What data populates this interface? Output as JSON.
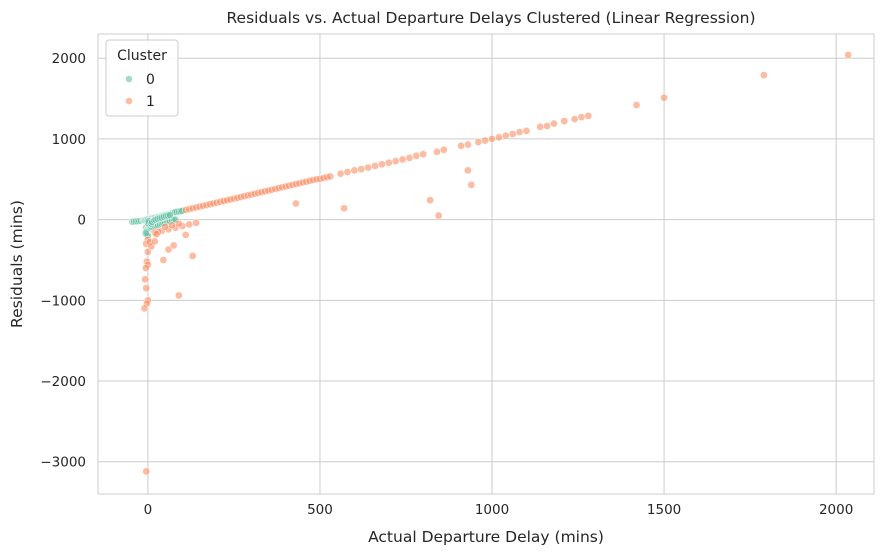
{
  "chart_data": {
    "type": "scatter",
    "title": "Residuals vs. Actual Departure Delays Clustered (Linear Regression)",
    "xlabel": "Actual Departure Delay (mins)",
    "ylabel": "Residuals (mins)",
    "xlim": [
      -145,
      2110
    ],
    "ylim": [
      -3400,
      2300
    ],
    "xticks": [
      0,
      500,
      1000,
      1500,
      2000
    ],
    "yticks": [
      -3000,
      -2000,
      -1000,
      0,
      1000,
      2000
    ],
    "xtick_labels": [
      "0",
      "500",
      "1000",
      "1500",
      "2000"
    ],
    "ytick_labels": [
      "−3000",
      "−2000",
      "−1000",
      "0",
      "1000",
      "2000"
    ],
    "grid": true,
    "legend": {
      "title": "Cluster",
      "position": "top-left",
      "entries": [
        "0",
        "1"
      ]
    },
    "series": [
      {
        "name": "0",
        "color": "#66c2a5",
        "points": [
          [
            -45,
            -28
          ],
          [
            -40,
            -25
          ],
          [
            -35,
            -22
          ],
          [
            -30,
            -20
          ],
          [
            -25,
            -18
          ],
          [
            -20,
            -14
          ],
          [
            -15,
            -10
          ],
          [
            -12,
            -8
          ],
          [
            -10,
            -5
          ],
          [
            -8,
            -3
          ],
          [
            -5,
            0
          ],
          [
            -3,
            2
          ],
          [
            0,
            5
          ],
          [
            2,
            8
          ],
          [
            5,
            10
          ],
          [
            8,
            12
          ],
          [
            10,
            15
          ],
          [
            12,
            18
          ],
          [
            15,
            20
          ],
          [
            18,
            24
          ],
          [
            20,
            26
          ],
          [
            22,
            28
          ],
          [
            25,
            30
          ],
          [
            28,
            33
          ],
          [
            30,
            36
          ],
          [
            32,
            38
          ],
          [
            35,
            40
          ],
          [
            38,
            44
          ],
          [
            40,
            46
          ],
          [
            42,
            48
          ],
          [
            45,
            52
          ],
          [
            48,
            55
          ],
          [
            50,
            58
          ],
          [
            52,
            60
          ],
          [
            55,
            62
          ],
          [
            58,
            66
          ],
          [
            60,
            68
          ],
          [
            62,
            70
          ],
          [
            65,
            74
          ],
          [
            68,
            78
          ],
          [
            70,
            80
          ],
          [
            72,
            82
          ],
          [
            75,
            86
          ],
          [
            78,
            90
          ],
          [
            80,
            94
          ],
          [
            85,
            98
          ],
          [
            90,
            100
          ],
          [
            95,
            104
          ],
          [
            100,
            108
          ],
          [
            -5,
            -100
          ],
          [
            -3,
            -130
          ],
          [
            0,
            -115
          ],
          [
            3,
            -120
          ],
          [
            5,
            -95
          ],
          [
            8,
            -105
          ],
          [
            10,
            -90
          ],
          [
            15,
            -85
          ],
          [
            20,
            -80
          ],
          [
            25,
            -75
          ],
          [
            30,
            -70
          ],
          [
            35,
            -60
          ],
          [
            40,
            -50
          ],
          [
            45,
            -45
          ],
          [
            50,
            -40
          ],
          [
            55,
            -30
          ],
          [
            60,
            -25
          ],
          [
            65,
            -20
          ],
          [
            70,
            -10
          ],
          [
            75,
            -5
          ],
          [
            80,
            0
          ],
          [
            -4,
            -150
          ],
          [
            -2,
            -180
          ],
          [
            0,
            -200
          ],
          [
            -6,
            -170
          ],
          [
            2,
            -60
          ],
          [
            4,
            -40
          ],
          [
            6,
            -20
          ],
          [
            0,
            -40
          ],
          [
            2,
            -20
          ],
          [
            10,
            -50
          ],
          [
            12,
            -30
          ],
          [
            18,
            -10
          ],
          [
            22,
            0
          ],
          [
            28,
            10
          ],
          [
            34,
            20
          ],
          [
            40,
            25
          ],
          [
            46,
            35
          ],
          [
            52,
            45
          ],
          [
            58,
            50
          ],
          [
            64,
            55
          ]
        ]
      },
      {
        "name": "1",
        "color": "#fc8d62",
        "points": [
          [
            110,
            120
          ],
          [
            120,
            130
          ],
          [
            130,
            140
          ],
          [
            140,
            150
          ],
          [
            150,
            160
          ],
          [
            160,
            170
          ],
          [
            170,
            180
          ],
          [
            180,
            190
          ],
          [
            190,
            200
          ],
          [
            200,
            210
          ],
          [
            210,
            220
          ],
          [
            220,
            230
          ],
          [
            230,
            240
          ],
          [
            240,
            250
          ],
          [
            250,
            260
          ],
          [
            260,
            270
          ],
          [
            270,
            280
          ],
          [
            280,
            290
          ],
          [
            290,
            300
          ],
          [
            300,
            310
          ],
          [
            310,
            320
          ],
          [
            320,
            330
          ],
          [
            330,
            340
          ],
          [
            340,
            350
          ],
          [
            350,
            360
          ],
          [
            360,
            370
          ],
          [
            370,
            380
          ],
          [
            380,
            390
          ],
          [
            390,
            400
          ],
          [
            400,
            410
          ],
          [
            410,
            420
          ],
          [
            420,
            430
          ],
          [
            430,
            440
          ],
          [
            440,
            450
          ],
          [
            450,
            460
          ],
          [
            460,
            470
          ],
          [
            470,
            480
          ],
          [
            480,
            490
          ],
          [
            490,
            500
          ],
          [
            500,
            505
          ],
          [
            510,
            515
          ],
          [
            520,
            525
          ],
          [
            530,
            535
          ],
          [
            560,
            570
          ],
          [
            580,
            590
          ],
          [
            600,
            610
          ],
          [
            620,
            625
          ],
          [
            640,
            645
          ],
          [
            660,
            665
          ],
          [
            680,
            685
          ],
          [
            700,
            705
          ],
          [
            720,
            725
          ],
          [
            740,
            745
          ],
          [
            760,
            765
          ],
          [
            780,
            790
          ],
          [
            800,
            810
          ],
          [
            840,
            840
          ],
          [
            860,
            865
          ],
          [
            910,
            915
          ],
          [
            930,
            930
          ],
          [
            960,
            960
          ],
          [
            980,
            980
          ],
          [
            1000,
            1000
          ],
          [
            1020,
            1020
          ],
          [
            1040,
            1040
          ],
          [
            1060,
            1060
          ],
          [
            1080,
            1085
          ],
          [
            1100,
            1100
          ],
          [
            1140,
            1150
          ],
          [
            1160,
            1160
          ],
          [
            1180,
            1190
          ],
          [
            1210,
            1220
          ],
          [
            1240,
            1245
          ],
          [
            1260,
            1270
          ],
          [
            1280,
            1285
          ],
          [
            1420,
            1420
          ],
          [
            1500,
            1510
          ],
          [
            1790,
            1790
          ],
          [
            2035,
            2040
          ],
          [
            40,
            -140
          ],
          [
            60,
            -120
          ],
          [
            80,
            -100
          ],
          [
            100,
            -80
          ],
          [
            120,
            -60
          ],
          [
            140,
            -40
          ],
          [
            30,
            -150
          ],
          [
            20,
            -160
          ],
          [
            50,
            -90
          ],
          [
            70,
            -70
          ],
          [
            90,
            -50
          ],
          [
            0,
            -250
          ],
          [
            -5,
            -300
          ],
          [
            0,
            -400
          ],
          [
            -3,
            -520
          ],
          [
            0,
            -560
          ],
          [
            -6,
            -600
          ],
          [
            -8,
            -740
          ],
          [
            -5,
            -850
          ],
          [
            0,
            -1000
          ],
          [
            -3,
            -1040
          ],
          [
            -10,
            -1100
          ],
          [
            5,
            -280
          ],
          [
            10,
            -330
          ],
          [
            20,
            -270
          ],
          [
            25,
            -180
          ],
          [
            45,
            -500
          ],
          [
            60,
            -370
          ],
          [
            75,
            -320
          ],
          [
            110,
            -190
          ],
          [
            130,
            -450
          ],
          [
            90,
            -940
          ],
          [
            -5,
            -3120
          ],
          [
            430,
            200
          ],
          [
            570,
            140
          ],
          [
            820,
            240
          ],
          [
            845,
            50
          ],
          [
            930,
            610
          ],
          [
            940,
            430
          ]
        ]
      }
    ]
  }
}
